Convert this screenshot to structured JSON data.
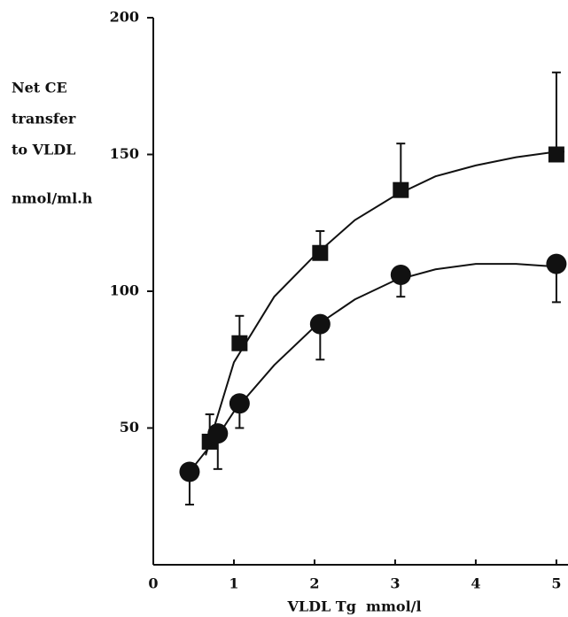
{
  "chart_data": {
    "type": "scatter",
    "ylabel": [
      "Net CE",
      "transfer",
      "to VLDL",
      "nmol/ml.h"
    ],
    "xlabel": "VLDL Tg  mmol/l",
    "xlim": [
      0,
      5.1
    ],
    "ylim": [
      0,
      200
    ],
    "xticks": [
      0,
      1,
      2,
      3,
      4,
      5
    ],
    "yticks": [
      50,
      100,
      150,
      200
    ],
    "series": [
      {
        "marker": "square",
        "color": "#111111",
        "error_direction": "up",
        "x": [
          0.7,
          1.07,
          2.07,
          3.07,
          5.0
        ],
        "values": [
          45,
          81,
          114,
          137,
          150
        ],
        "errors": [
          10,
          10,
          8,
          17,
          30
        ],
        "fit_x": [
          0.65,
          0.7,
          1,
          1.5,
          2,
          2.5,
          3,
          3.5,
          4,
          4.5,
          5,
          5.1
        ],
        "fit_values": [
          40,
          45,
          74,
          98,
          113,
          126,
          135,
          142,
          146,
          149,
          151,
          151
        ]
      },
      {
        "marker": "circle",
        "color": "#111111",
        "error_direction": "down",
        "x": [
          0.45,
          0.8,
          1.07,
          2.07,
          3.07,
          5.0
        ],
        "values": [
          34,
          48,
          59,
          88,
          106,
          110
        ],
        "errors": [
          12,
          13,
          9,
          13,
          8,
          14
        ],
        "fit_x": [
          0.45,
          0.8,
          1,
          1.5,
          2,
          2.5,
          3,
          3.5,
          4,
          4.5,
          5,
          5.1
        ],
        "fit_values": [
          34,
          47,
          56,
          73,
          87,
          97,
          104,
          108,
          110,
          110,
          109,
          109
        ]
      }
    ]
  }
}
